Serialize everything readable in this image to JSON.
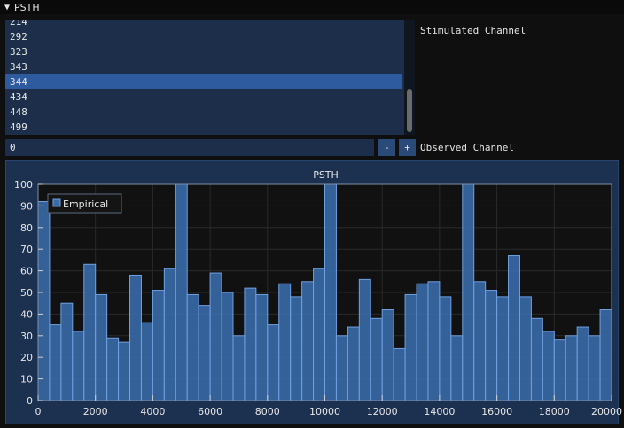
{
  "window": {
    "title": "PSTH",
    "collapse_icon": "triangle-down-icon"
  },
  "stimulated_list": {
    "items": [
      "214",
      "292",
      "323",
      "343",
      "344",
      "434",
      "448",
      "499"
    ],
    "selected": "344",
    "label": "Stimulated Channel"
  },
  "observed_input": {
    "value": "0",
    "minus_label": "-",
    "plus_label": "+",
    "label": "Observed Channel"
  },
  "colors": {
    "bar_fill": "#3a6aa8",
    "bar_stroke": "#6fa0e0",
    "plot_bg": "#111111",
    "frame_bg": "#1c3050",
    "selected_row": "#2e5aa0"
  },
  "chart_data": {
    "type": "bar",
    "title": "PSTH",
    "legend": [
      "Empirical"
    ],
    "legend_position": "top-left",
    "grid": true,
    "xlim": [
      0,
      20000
    ],
    "ylim": [
      0,
      100
    ],
    "xticks": [
      "0",
      "2000",
      "4000",
      "6000",
      "8000",
      "10000",
      "12000",
      "14000",
      "16000",
      "18000",
      "20000"
    ],
    "yticks": [
      "0",
      "10",
      "20",
      "30",
      "40",
      "50",
      "60",
      "70",
      "80",
      "90",
      "100"
    ],
    "bin_width": 400,
    "series": [
      {
        "name": "Empirical",
        "x": [
          0,
          400,
          800,
          1200,
          1600,
          2000,
          2400,
          2800,
          3200,
          3600,
          4000,
          4400,
          4800,
          5200,
          5600,
          6000,
          6400,
          6800,
          7200,
          7600,
          8000,
          8400,
          8800,
          9200,
          9600,
          10000,
          10400,
          10800,
          11200,
          11600,
          12000,
          12400,
          12800,
          13200,
          13600,
          14000,
          14400,
          14800,
          15200,
          15600,
          16000,
          16400,
          16800,
          17200,
          17600,
          18000,
          18400,
          18800,
          19200,
          19600
        ],
        "values": [
          92,
          35,
          45,
          32,
          63,
          49,
          29,
          27,
          58,
          36,
          51,
          61,
          100,
          49,
          44,
          59,
          50,
          30,
          52,
          49,
          35,
          54,
          48,
          55,
          61,
          100,
          30,
          34,
          56,
          38,
          42,
          24,
          49,
          54,
          55,
          48,
          30,
          100,
          55,
          51,
          48,
          67,
          48,
          38,
          32,
          28,
          30,
          34,
          30,
          42
        ]
      }
    ]
  }
}
